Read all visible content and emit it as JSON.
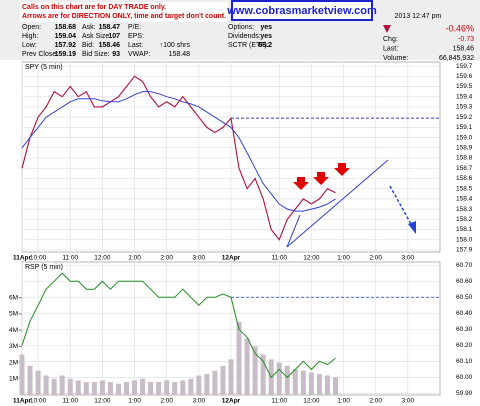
{
  "header": {
    "notice": [
      "Calls on this chart are for DAY TRADE only.",
      "Arrows are for DIRECTION ONLY, time and target don't count."
    ],
    "site": "www.cobrasmarketview.com",
    "timestamp": "2013 12:47 pm",
    "columns": [
      [
        {
          "label": "Open:",
          "value": 158.68
        },
        {
          "label": "High:",
          "value": 159.04
        },
        {
          "label": "Low:",
          "value": 157.92
        },
        {
          "label": "Prev Close:",
          "value": 159.19
        }
      ],
      [
        {
          "label": "Ask:",
          "value": 158.47
        },
        {
          "label": "Ask Size:",
          "value": 107
        },
        {
          "label": "Bid:",
          "value": 158.46
        },
        {
          "label": "Bid Size:",
          "value": 93
        }
      ],
      [
        {
          "label": "P/E:",
          "value": ""
        },
        {
          "label": "EPS:",
          "value": ""
        },
        {
          "label": "Last:",
          "value": "↑100 shrs"
        },
        {
          "label": "VWAP:",
          "value": 158.48
        }
      ],
      [
        {
          "label": "Options:",
          "value": "yes"
        },
        {
          "label": "Dividends:",
          "value": "yes"
        },
        {
          "label": "SCTR (ETF):",
          "value": 66.2
        }
      ]
    ],
    "change_pct": "-0.46%",
    "right": [
      {
        "label": "Chg:",
        "value": -0.73
      },
      {
        "label": "Last:",
        "value": 158.46
      },
      {
        "label": "Volume:",
        "value": "66,845,932"
      }
    ]
  },
  "chart_data": [
    {
      "type": "line",
      "title": "SPY (5 min)",
      "x": [
        0,
        0.25,
        0.5,
        0.75,
        1,
        1.25,
        1.5,
        1.75,
        2,
        2.25,
        2.5,
        2.75,
        3,
        3.25,
        3.5,
        3.75,
        4,
        4.25,
        4.5,
        4.75,
        5,
        5.25,
        5.5,
        5.75,
        6,
        6.25,
        6.5,
        6.75,
        7,
        7.25,
        7.5,
        7.75,
        8,
        8.25,
        8.5,
        8.75,
        9,
        9.25,
        9.5,
        9.75
      ],
      "series": [
        {
          "color": "#b0103a",
          "values": [
            158.7,
            159.0,
            159.2,
            159.3,
            159.45,
            159.4,
            159.5,
            159.4,
            159.45,
            159.3,
            159.3,
            159.35,
            159.4,
            159.5,
            159.6,
            159.55,
            159.4,
            159.3,
            159.35,
            159.3,
            159.4,
            159.3,
            159.2,
            159.1,
            159.05,
            159.1,
            159.19,
            158.7,
            158.5,
            158.6,
            158.4,
            158.1,
            158.0,
            158.2,
            158.3,
            158.4,
            158.35,
            158.4,
            158.5,
            158.46
          ]
        },
        {
          "color": "#3344cc",
          "values": [
            158.9,
            159.0,
            159.1,
            159.2,
            159.25,
            159.3,
            159.35,
            159.38,
            159.38,
            159.38,
            159.36,
            159.35,
            159.35,
            159.38,
            159.42,
            159.45,
            159.45,
            159.43,
            159.4,
            159.38,
            159.35,
            159.33,
            159.3,
            159.25,
            159.2,
            159.15,
            159.1,
            159.0,
            158.85,
            158.7,
            158.55,
            158.45,
            158.35,
            158.3,
            158.28,
            158.28,
            158.3,
            158.32,
            158.35,
            158.4
          ]
        }
      ],
      "hline": 159.19,
      "xlim": [
        0,
        13
      ],
      "xticks": [
        {
          "value": 0,
          "label": "11Apr"
        },
        {
          "value": 0.5,
          "label": "10:00"
        },
        {
          "value": 1.5,
          "label": "11:00"
        },
        {
          "value": 2.5,
          "label": "12:00"
        },
        {
          "value": 3.5,
          "label": "1:00"
        },
        {
          "value": 4.5,
          "label": "2:00"
        },
        {
          "value": 5.5,
          "label": "3:00"
        },
        {
          "value": 6.5,
          "label": "12Apr"
        },
        {
          "value": 8,
          "label": "11:00"
        },
        {
          "value": 9,
          "label": "12:00"
        },
        {
          "value": 10,
          "label": "1:00"
        },
        {
          "value": 11,
          "label": "2:00"
        },
        {
          "value": 12,
          "label": "3:00"
        }
      ],
      "ylim": [
        157.88,
        159.74
      ],
      "yticks": [
        157.9,
        {
          "value": 158.0,
          "label": "158.0"
        },
        158.1,
        158.2,
        158.3,
        158.4,
        158.5,
        158.6,
        158.7,
        158.8,
        158.9,
        {
          "value": 159.0,
          "label": "159.0"
        },
        159.1,
        159.2,
        159.3,
        159.4,
        159.5,
        159.6,
        159.7
      ],
      "grid": true
    },
    {
      "type": "line",
      "title": "RSP (5 min)",
      "x": [
        0,
        0.25,
        0.5,
        0.75,
        1,
        1.25,
        1.5,
        1.75,
        2,
        2.25,
        2.5,
        2.75,
        3,
        3.25,
        3.5,
        3.75,
        4,
        4.25,
        4.5,
        4.75,
        5,
        5.25,
        5.5,
        5.75,
        6,
        6.25,
        6.5,
        6.75,
        7,
        7.25,
        7.5,
        7.75,
        8,
        8.25,
        8.5,
        8.75,
        9,
        9.25,
        9.5,
        9.75
      ],
      "series": [
        {
          "color": "#c8bcc8",
          "axis": "y2",
          "values": [
            2.5,
            1.8,
            1.5,
            1.2,
            1.0,
            1.2,
            1.0,
            0.9,
            0.8,
            0.8,
            0.9,
            0.8,
            0.7,
            0.8,
            0.9,
            1.0,
            0.8,
            0.8,
            0.9,
            0.8,
            0.9,
            1.0,
            1.2,
            1.3,
            1.5,
            1.8,
            2.2,
            4.5,
            3.5,
            3.0,
            2.5,
            2.2,
            2.0,
            1.8,
            1.6,
            1.5,
            1.4,
            1.3,
            1.2,
            1.1
          ]
        },
        {
          "color": "#228822",
          "values": [
            60.2,
            60.35,
            60.45,
            60.55,
            60.6,
            60.65,
            60.6,
            60.6,
            60.55,
            60.55,
            60.6,
            60.55,
            60.6,
            60.6,
            60.6,
            60.6,
            60.55,
            60.5,
            60.5,
            60.5,
            60.55,
            60.5,
            60.45,
            60.5,
            60.5,
            60.52,
            60.5,
            60.3,
            60.25,
            60.15,
            60.1,
            60.0,
            60.05,
            60.0,
            60.05,
            60.1,
            60.05,
            60.1,
            60.08,
            60.12
          ]
        }
      ],
      "hline": 60.5,
      "xlim": [
        0,
        13
      ],
      "xticks": [
        {
          "value": 0,
          "label": "11Apr"
        },
        {
          "value": 0.5,
          "label": "10:00"
        },
        {
          "value": 1.5,
          "label": "11:00"
        },
        {
          "value": 2.5,
          "label": "12:00"
        },
        {
          "value": 3.5,
          "label": "1:00"
        },
        {
          "value": 4.5,
          "label": "2:00"
        },
        {
          "value": 5.5,
          "label": "3:00"
        },
        {
          "value": 6.5,
          "label": "12Apr"
        },
        {
          "value": 8,
          "label": "11:00"
        },
        {
          "value": 9,
          "label": "12:00"
        },
        {
          "value": 10,
          "label": "1:00"
        },
        {
          "value": 11,
          "label": "2:00"
        },
        {
          "value": 12,
          "label": "3:00"
        }
      ],
      "ylim": [
        59.89,
        60.72
      ],
      "yticks": [
        {
          "value": 59.9,
          "label": "59.90"
        },
        {
          "value": 60.0,
          "label": "60.00"
        },
        {
          "value": 60.1,
          "label": "60.10"
        },
        {
          "value": 60.2,
          "label": "60.20"
        },
        {
          "value": 60.3,
          "label": "60.30"
        },
        {
          "value": 60.4,
          "label": "60.40"
        },
        {
          "value": 60.5,
          "label": "60.50"
        },
        {
          "value": 60.6,
          "label": "60.60"
        },
        {
          "value": 60.7,
          "label": "60.70"
        }
      ],
      "y2lim": [
        0,
        8.2
      ],
      "y2ticks": [
        {
          "value": 1,
          "label": "1M"
        },
        {
          "value": 2,
          "label": "2M"
        },
        {
          "value": 3,
          "label": "3M"
        },
        {
          "value": 4,
          "label": "4M"
        },
        {
          "value": 5,
          "label": "5M"
        },
        {
          "value": 6,
          "label": "6M"
        }
      ],
      "grid": true
    }
  ]
}
